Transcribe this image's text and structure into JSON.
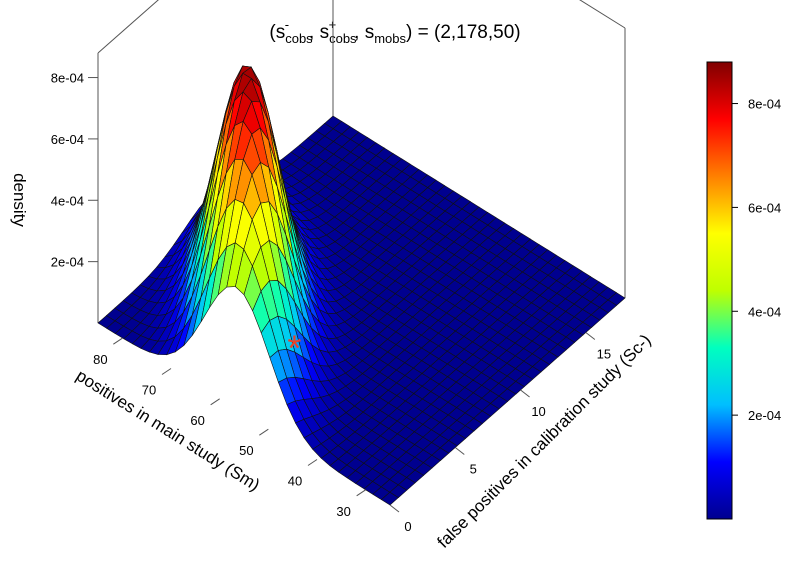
{
  "title": {
    "prefix": "(s",
    "t1_sub": "cobs",
    "t1_sup": "-",
    "sep1": ", s",
    "t2_sub": "cobs",
    "t2_sup": "+",
    "sep2": ", s",
    "t3_sub": "mobs",
    "suffix": ") = (2,178,50)"
  },
  "chart_data": {
    "type": "surface",
    "x_axis": {
      "label": "false positives in calibration study (Sc-)",
      "range": [
        0,
        18
      ],
      "ticks": [
        "0",
        "5",
        "10",
        "15"
      ]
    },
    "y_axis": {
      "label": "positives in main study (Sm)",
      "range": [
        25,
        85
      ],
      "ticks": [
        "30",
        "40",
        "50",
        "60",
        "70",
        "80"
      ]
    },
    "z_axis": {
      "label": "density",
      "range": [
        0,
        0.00088
      ],
      "ticks": [
        "2e-04",
        "4e-04",
        "6e-04",
        "8e-04"
      ]
    },
    "peak": {
      "sc_minus": 4,
      "sm": 65,
      "density": 0.00087
    },
    "spread": {
      "sc_minus_sd": 3.2,
      "sm_sd": 9.5,
      "correlation": 0.72
    },
    "observed_point": {
      "sc_minus": 2,
      "sm": 50,
      "marker": "*",
      "color": "#e8442a"
    },
    "colorbar": {
      "ticks": [
        "2e-04",
        "4e-04",
        "6e-04",
        "8e-04"
      ],
      "min": 0,
      "max": 0.00088,
      "colors": [
        "#00008f",
        "#0000ff",
        "#00bfff",
        "#00ffbf",
        "#bfff00",
        "#ffff00",
        "#ff8000",
        "#ff0000",
        "#800000"
      ]
    },
    "grid": false,
    "legend": "right"
  }
}
